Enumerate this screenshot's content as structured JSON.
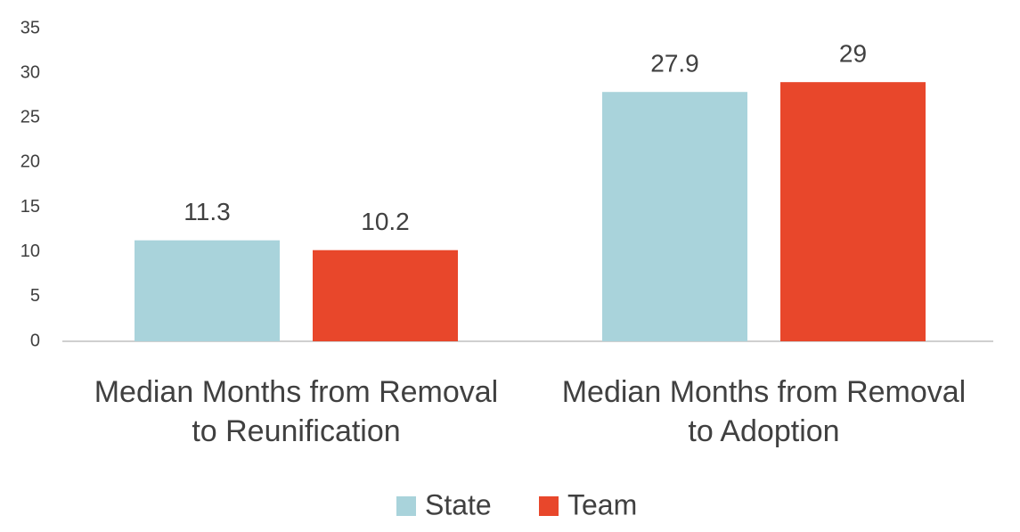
{
  "chart_data": {
    "type": "bar",
    "categories": [
      "Median Months from Removal\nto Reunification",
      "Median Months from Removal\nto Adoption"
    ],
    "series": [
      {
        "name": "State",
        "color": "#a9d3db",
        "values": [
          11.3,
          27.9
        ]
      },
      {
        "name": "Team",
        "color": "#e8472b",
        "values": [
          10.2,
          29
        ]
      }
    ],
    "ylim": [
      0,
      35
    ],
    "yticks": [
      0,
      5,
      10,
      15,
      20,
      25,
      30,
      35
    ],
    "grid": false,
    "legend": "bottom"
  }
}
